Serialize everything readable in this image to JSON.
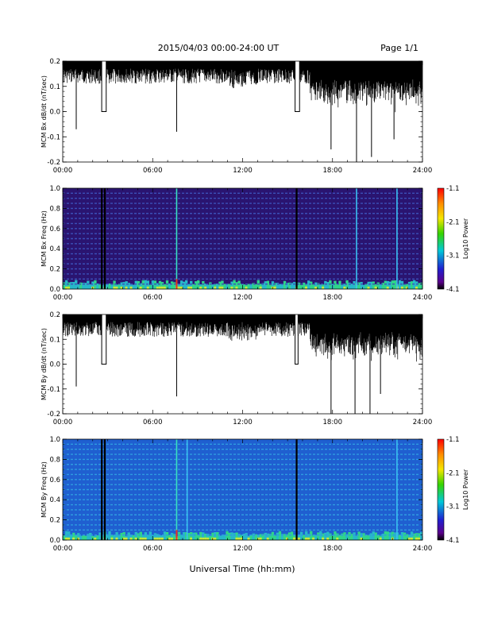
{
  "header": {
    "title": "2015/04/03  00:00-24:00 UT",
    "page": "Page 1/1"
  },
  "xaxis": {
    "label": "Universal Time (hh:mm)",
    "ticks": [
      "00:00",
      "06:00",
      "12:00",
      "18:00",
      "24:00"
    ],
    "range_hours": [
      0,
      24
    ]
  },
  "chart_data": [
    {
      "type": "line",
      "ylabel": "MCM Bx dB/dt (nT/sec)",
      "ylim": [
        -0.2,
        0.2
      ],
      "yticks": [
        "0.2",
        "0.1",
        "0.0",
        "-0.1",
        "-0.2"
      ],
      "baseline_top": 0.2,
      "color": "#000000",
      "dropouts_hours": [
        [
          2.6,
          2.9
        ],
        [
          15.5,
          15.8
        ]
      ],
      "spikes": [
        {
          "t": 0.9,
          "v": -0.07
        },
        {
          "t": 7.6,
          "v": -0.08
        },
        {
          "t": 17.9,
          "v": -0.15
        },
        {
          "t": 19.6,
          "v": -0.2
        },
        {
          "t": 20.6,
          "v": -0.18
        },
        {
          "t": 22.1,
          "v": -0.11
        }
      ]
    },
    {
      "type": "heatmap",
      "ylabel": "MCM Bx Freq (Hz)",
      "ylim": [
        0.0,
        1.0
      ],
      "yticks": [
        "1.0",
        "0.8",
        "0.6",
        "0.4",
        "0.2",
        "0.0"
      ],
      "colorbar": {
        "label": "Log10 Power",
        "ticks": [
          "-1.1",
          "-2.1",
          "-3.1",
          "-4.1"
        ],
        "range": [
          -4.1,
          -1.1
        ]
      },
      "background": "#2a1470",
      "gaps_hours": [
        2.6,
        2.8,
        15.6
      ],
      "bright_lines_hours": [
        7.6,
        19.6,
        22.3
      ],
      "harmonics_hz": [
        0.05,
        0.1,
        0.15,
        0.2,
        0.25,
        0.3,
        0.35,
        0.4,
        0.45,
        0.5,
        0.55,
        0.6,
        0.65,
        0.7,
        0.75,
        0.8,
        0.85,
        0.9,
        0.95
      ]
    },
    {
      "type": "line",
      "ylabel": "MCM By dB/dt (nT/sec)",
      "ylim": [
        -0.2,
        0.2
      ],
      "yticks": [
        "0.2",
        "0.1",
        "0.0",
        "-0.1",
        "-0.2"
      ],
      "baseline_top": 0.2,
      "color": "#000000",
      "dropouts_hours": [
        [
          2.6,
          2.9
        ],
        [
          15.5,
          15.7
        ]
      ],
      "spikes": [
        {
          "t": 0.9,
          "v": -0.09
        },
        {
          "t": 7.6,
          "v": -0.13
        },
        {
          "t": 17.9,
          "v": -0.2
        },
        {
          "t": 19.5,
          "v": -0.2
        },
        {
          "t": 20.5,
          "v": -0.2
        },
        {
          "t": 21.2,
          "v": -0.12
        }
      ]
    },
    {
      "type": "heatmap",
      "ylabel": "MCM By Freq (Hz)",
      "ylim": [
        0.0,
        1.0
      ],
      "yticks": [
        "1.0",
        "0.8",
        "0.6",
        "0.4",
        "0.2",
        "0.0"
      ],
      "colorbar": {
        "label": "Log10 Power",
        "ticks": [
          "-1.1",
          "-2.1",
          "-3.1",
          "-4.1"
        ],
        "range": [
          -4.1,
          -1.1
        ]
      },
      "background": "#1f5fd0",
      "gaps_hours": [
        2.6,
        2.8,
        15.6
      ],
      "bright_lines_hours": [
        7.6,
        8.3,
        22.3
      ],
      "harmonics_hz": [
        0.05,
        0.1,
        0.15,
        0.2,
        0.25,
        0.3,
        0.35,
        0.4,
        0.45,
        0.5,
        0.55,
        0.6,
        0.65,
        0.7,
        0.75,
        0.8,
        0.85,
        0.9,
        0.95
      ]
    }
  ]
}
